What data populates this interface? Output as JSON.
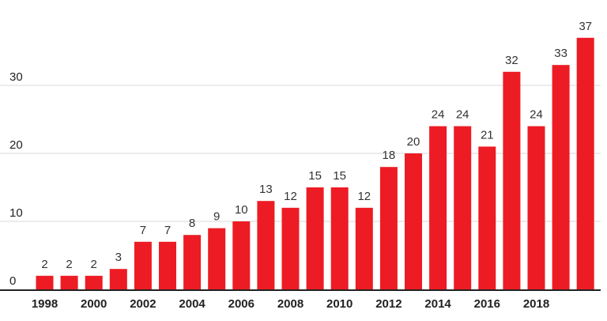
{
  "chart_data": {
    "type": "bar",
    "categories": [
      "1998",
      "1999",
      "2000",
      "2001",
      "2002",
      "2003",
      "2004",
      "2005",
      "2006",
      "2007",
      "2008",
      "2009",
      "2010",
      "2011",
      "2012",
      "2013",
      "2014",
      "2015",
      "2016",
      "2017",
      "2018",
      "2019",
      "2020"
    ],
    "values": [
      2,
      2,
      2,
      3,
      7,
      7,
      8,
      9,
      10,
      13,
      12,
      15,
      15,
      12,
      18,
      20,
      24,
      24,
      21,
      32,
      24,
      33,
      37
    ],
    "x_tick_labels": [
      "1998",
      "2000",
      "2002",
      "2004",
      "2006",
      "2008",
      "2010",
      "2012",
      "2014",
      "2016",
      "2018"
    ],
    "y_ticks": [
      "0",
      "10",
      "20",
      "30"
    ],
    "ylim": [
      0,
      40
    ],
    "grid": true,
    "bar_color": "#ed1c24",
    "grid_color": "#d9d9d9",
    "axis_color": "#222222",
    "title": "",
    "xlabel": "",
    "ylabel": ""
  }
}
